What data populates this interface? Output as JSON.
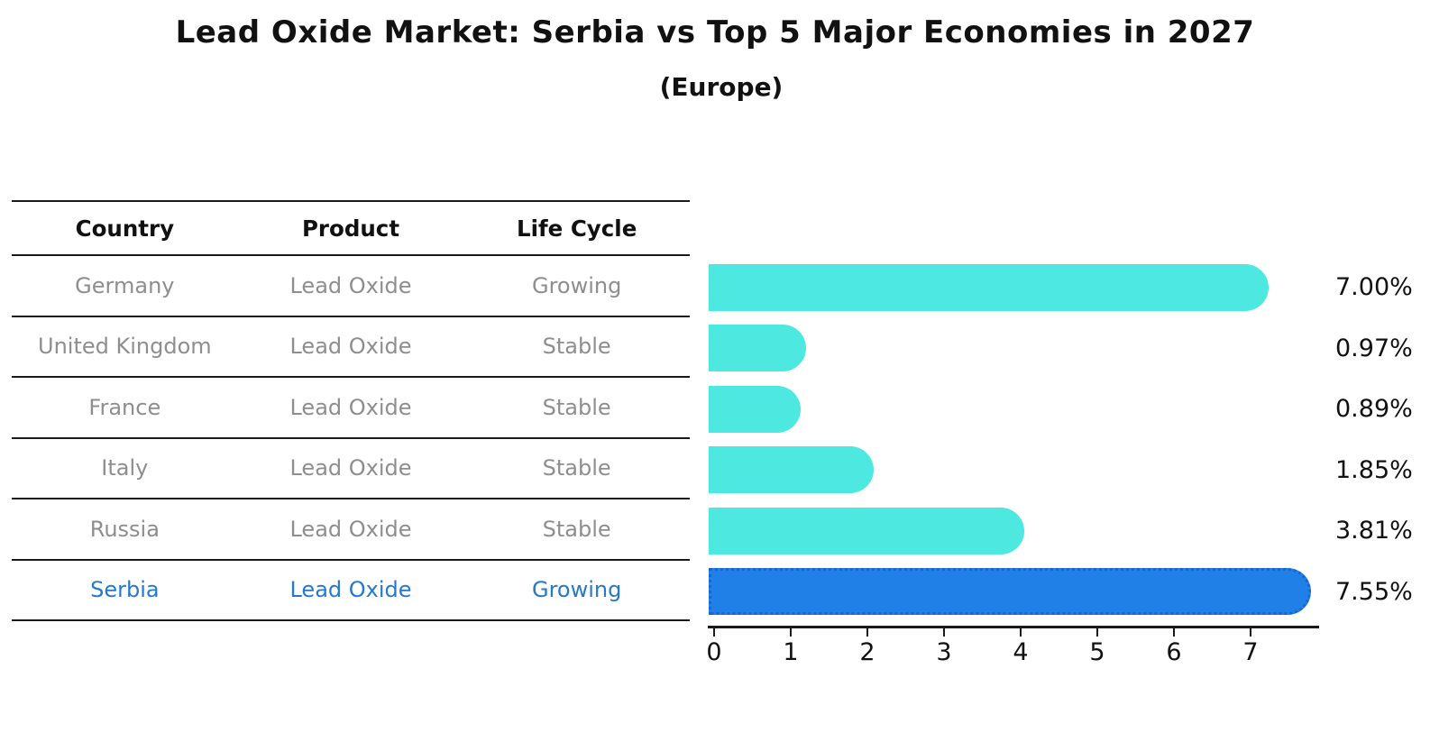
{
  "title": "Lead Oxide Market: Serbia vs Top 5 Major Economies in 2027",
  "subtitle": "(Europe)",
  "table": {
    "headers": [
      "Country",
      "Product",
      "Life Cycle"
    ],
    "rows": [
      {
        "country": "Germany",
        "product": "Lead Oxide",
        "life_cycle": "Growing"
      },
      {
        "country": "United Kingdom",
        "product": "Lead Oxide",
        "life_cycle": "Stable"
      },
      {
        "country": "France",
        "product": "Lead Oxide",
        "life_cycle": "Stable"
      },
      {
        "country": "Italy",
        "product": "Lead Oxide",
        "life_cycle": "Stable"
      },
      {
        "country": "Russia",
        "product": "Lead Oxide",
        "life_cycle": "Stable"
      },
      {
        "country": "Serbia",
        "product": "Lead Oxide",
        "life_cycle": "Growing"
      }
    ]
  },
  "chart_data": {
    "type": "bar",
    "orientation": "horizontal",
    "title": "Lead Oxide Market: Serbia vs Top 5 Major Economies in 2027 (Europe)",
    "categories": [
      "Germany",
      "United Kingdom",
      "France",
      "Italy",
      "Russia",
      "Serbia"
    ],
    "values": [
      7.0,
      0.97,
      0.89,
      1.85,
      3.81,
      7.55
    ],
    "value_labels": [
      "7.00%",
      "0.97%",
      "0.89%",
      "1.85%",
      "3.81%",
      "7.55%"
    ],
    "x_ticks": [
      "0",
      "1",
      "2",
      "3",
      "4",
      "5",
      "6",
      "7"
    ],
    "xlim": [
      0,
      8
    ],
    "grid": false,
    "legend": false,
    "highlight_index": 5,
    "bar_color": "#4de8e0",
    "highlight_color": "#2080e8",
    "highlight_border_color": "#1a66cc"
  },
  "colors": {
    "background": "#ffffff",
    "text_black": "#111111",
    "row_text_gray": "#8e8e8e",
    "highlight_text_blue": "#2479ce",
    "table_line": "#1a1a1a"
  }
}
